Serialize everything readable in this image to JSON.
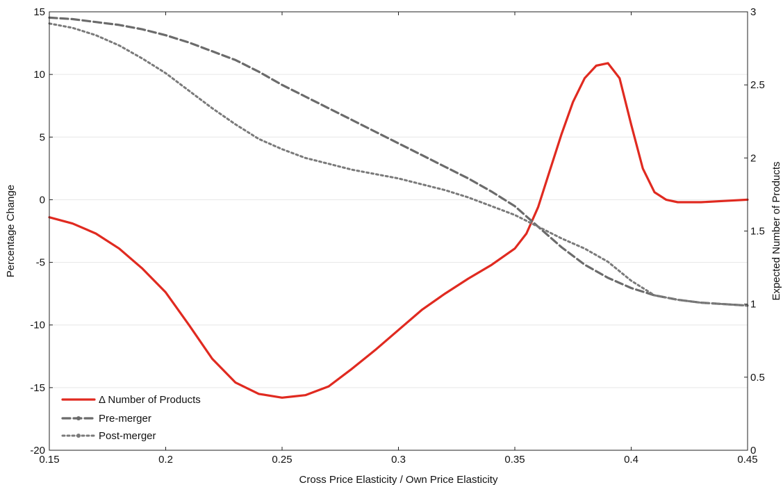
{
  "chart_data": {
    "type": "line",
    "xlabel": "Cross Price Elasticity / Own Price Elasticity",
    "ylabel": "Percentage Change",
    "y2label": "Expected Number of Products",
    "xlim": [
      0.15,
      0.45
    ],
    "ylim": [
      -20,
      15
    ],
    "y2lim": [
      0,
      3
    ],
    "xticks": [
      0.15,
      0.2,
      0.25,
      0.3,
      0.35,
      0.4,
      0.45
    ],
    "xtick_labels": [
      "0.15",
      "0.2",
      "0.25",
      "0.3",
      "0.35",
      "0.4",
      "0.45"
    ],
    "yticks": [
      -20,
      -15,
      -10,
      -5,
      0,
      5,
      10,
      15
    ],
    "ytick_labels": [
      "-20",
      "-15",
      "-10",
      "-5",
      "0",
      "5",
      "10",
      "15"
    ],
    "y2ticks": [
      0,
      0.5,
      1,
      1.5,
      2,
      2.5,
      3
    ],
    "y2tick_labels": [
      "0",
      "0.5",
      "1",
      "1.5",
      "2",
      "2.5",
      "3"
    ],
    "grid": "horizontal",
    "legend_position": "bottom-left",
    "series": [
      {
        "name": "Δ Number of Products",
        "axis": "left",
        "style": "solid",
        "color": "#e02a20",
        "x": [
          0.15,
          0.16,
          0.17,
          0.18,
          0.19,
          0.2,
          0.21,
          0.22,
          0.23,
          0.24,
          0.25,
          0.255,
          0.26,
          0.27,
          0.28,
          0.29,
          0.3,
          0.31,
          0.32,
          0.33,
          0.34,
          0.35,
          0.355,
          0.36,
          0.365,
          0.37,
          0.375,
          0.38,
          0.385,
          0.39,
          0.395,
          0.4,
          0.405,
          0.41,
          0.415,
          0.42,
          0.43,
          0.44,
          0.45
        ],
        "values": [
          -1.4,
          -1.9,
          -2.7,
          -3.9,
          -5.5,
          -7.4,
          -10.0,
          -12.7,
          -14.6,
          -15.5,
          -15.8,
          -15.7,
          -15.6,
          -14.9,
          -13.5,
          -12.0,
          -10.4,
          -8.8,
          -7.5,
          -6.3,
          -5.2,
          -3.9,
          -2.7,
          -0.6,
          2.3,
          5.2,
          7.8,
          9.7,
          10.7,
          10.9,
          9.7,
          6.0,
          2.5,
          0.6,
          0.0,
          -0.2,
          -0.2,
          -0.1,
          0.0
        ]
      },
      {
        "name": "Pre-merger",
        "axis": "right",
        "style": "dashed",
        "color": "#6b6b6b",
        "x": [
          0.15,
          0.16,
          0.17,
          0.18,
          0.19,
          0.2,
          0.21,
          0.22,
          0.23,
          0.24,
          0.25,
          0.26,
          0.27,
          0.28,
          0.29,
          0.3,
          0.31,
          0.32,
          0.33,
          0.34,
          0.35,
          0.36,
          0.37,
          0.38,
          0.39,
          0.4,
          0.41,
          0.42,
          0.43,
          0.44,
          0.45
        ],
        "values": [
          2.96,
          2.95,
          2.93,
          2.91,
          2.88,
          2.84,
          2.79,
          2.73,
          2.67,
          2.59,
          2.5,
          2.42,
          2.34,
          2.26,
          2.18,
          2.1,
          2.02,
          1.94,
          1.86,
          1.77,
          1.67,
          1.53,
          1.39,
          1.27,
          1.18,
          1.11,
          1.06,
          1.03,
          1.01,
          1.0,
          0.99
        ]
      },
      {
        "name": "Post-merger",
        "axis": "right",
        "style": "dotted",
        "color": "#7a7a7a",
        "x": [
          0.15,
          0.16,
          0.17,
          0.18,
          0.19,
          0.2,
          0.21,
          0.22,
          0.23,
          0.24,
          0.25,
          0.26,
          0.27,
          0.28,
          0.29,
          0.3,
          0.31,
          0.32,
          0.33,
          0.34,
          0.35,
          0.36,
          0.37,
          0.38,
          0.39,
          0.4,
          0.41,
          0.42,
          0.43,
          0.44,
          0.45
        ],
        "values": [
          2.92,
          2.89,
          2.84,
          2.77,
          2.68,
          2.58,
          2.46,
          2.34,
          2.23,
          2.13,
          2.06,
          2.0,
          1.96,
          1.92,
          1.89,
          1.86,
          1.82,
          1.78,
          1.73,
          1.67,
          1.61,
          1.53,
          1.45,
          1.38,
          1.29,
          1.16,
          1.06,
          1.03,
          1.01,
          1.0,
          0.99
        ]
      }
    ]
  }
}
